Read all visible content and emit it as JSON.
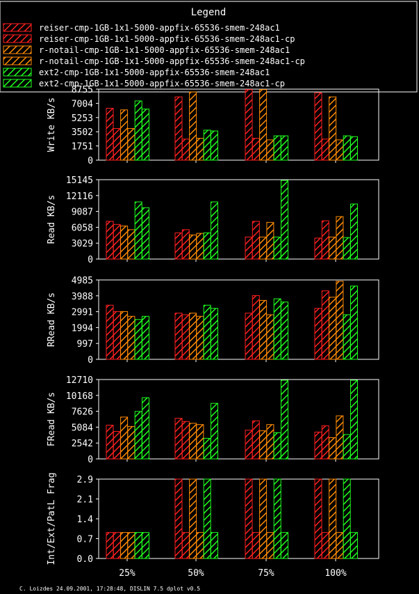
{
  "legend": {
    "title": "Legend",
    "entries": [
      {
        "label": "reiser-cmp-1GB-1x1-5000-appfix-65536-smem-248ac1",
        "color": "#ff2020",
        "pattern": "hatch"
      },
      {
        "label": "reiser-cmp-1GB-1x1-5000-appfix-65536-smem-248ac1-cp",
        "color": "#ff2020",
        "pattern": "hatch"
      },
      {
        "label": "r-notail-cmp-1GB-1x1-5000-appfix-65536-smem-248ac1",
        "color": "#ff8c00",
        "pattern": "hatch"
      },
      {
        "label": "r-notail-cmp-1GB-1x1-5000-appfix-65536-smem-248ac1-cp",
        "color": "#ff8c00",
        "pattern": "hatch"
      },
      {
        "label": "ext2-cmp-1GB-1x1-5000-appfix-65536-smem-248ac1",
        "color": "#20ff20",
        "pattern": "hatch"
      },
      {
        "label": "ext2-cmp-1GB-1x1-5000-appfix-65536-smem-248ac1-cp",
        "color": "#20ff20",
        "pattern": "hatch"
      }
    ]
  },
  "footer": "C. Loizdes 24.09.2001, 17:28:48, DISLIN 7.5 dplot v0.5",
  "chart_data": [
    {
      "type": "bar",
      "ylabel": "Write KB/s",
      "yticks": [
        "0",
        "1751",
        "3502",
        "5253",
        "7004",
        "8755"
      ],
      "ylim": [
        0,
        8755
      ],
      "categories": [
        "25%",
        "50%",
        "75%",
        "100%"
      ],
      "series": [
        {
          "values": [
            6400,
            7800,
            8700,
            8300
          ]
        },
        {
          "values": [
            3900,
            2600,
            2700,
            2600
          ]
        },
        {
          "values": [
            6200,
            8400,
            8700,
            7800
          ]
        },
        {
          "values": [
            3900,
            2700,
            2500,
            2500
          ]
        },
        {
          "values": [
            7300,
            3700,
            3000,
            3000
          ]
        },
        {
          "values": [
            6300,
            3600,
            3000,
            2900
          ]
        }
      ]
    },
    {
      "type": "bar",
      "ylabel": "Read KB/s",
      "yticks": [
        "0",
        "3029",
        "6058",
        "9087",
        "12116",
        "15145"
      ],
      "ylim": [
        0,
        15145
      ],
      "categories": [
        "25%",
        "50%",
        "75%",
        "100%"
      ],
      "series": [
        {
          "values": [
            7200,
            5000,
            4200,
            4000
          ]
        },
        {
          "values": [
            6600,
            5600,
            7200,
            7300
          ]
        },
        {
          "values": [
            6300,
            4600,
            4200,
            4200
          ]
        },
        {
          "values": [
            5600,
            4900,
            7000,
            8100
          ]
        },
        {
          "values": [
            10900,
            5000,
            4200,
            4100
          ]
        },
        {
          "values": [
            9800,
            10900,
            15000,
            10500
          ]
        }
      ]
    },
    {
      "type": "bar",
      "ylabel": "RRead KB/s",
      "yticks": [
        "0",
        "997",
        "1994",
        "2991",
        "3988",
        "4985"
      ],
      "ylim": [
        0,
        4985
      ],
      "categories": [
        "25%",
        "50%",
        "75%",
        "100%"
      ],
      "series": [
        {
          "values": [
            3400,
            2900,
            2900,
            3200
          ]
        },
        {
          "values": [
            3000,
            2800,
            4000,
            4300
          ]
        },
        {
          "values": [
            3000,
            2900,
            3700,
            3900
          ]
        },
        {
          "values": [
            2700,
            2700,
            2800,
            4900
          ]
        },
        {
          "values": [
            2500,
            3400,
            3800,
            2800
          ]
        },
        {
          "values": [
            2700,
            3200,
            3600,
            4600
          ]
        }
      ]
    },
    {
      "type": "bar",
      "ylabel": "FRead KB/s",
      "yticks": [
        "0",
        "2542",
        "5084",
        "7626",
        "10168",
        "12710"
      ],
      "ylim": [
        0,
        12710
      ],
      "categories": [
        "25%",
        "50%",
        "75%",
        "100%"
      ],
      "series": [
        {
          "values": [
            5400,
            6500,
            4600,
            4300
          ]
        },
        {
          "values": [
            4400,
            6000,
            6100,
            5300
          ]
        },
        {
          "values": [
            6700,
            5700,
            4500,
            3400
          ]
        },
        {
          "values": [
            5200,
            5500,
            5500,
            6900
          ]
        },
        {
          "values": [
            7600,
            3300,
            4200,
            3900
          ]
        },
        {
          "values": [
            9800,
            8900,
            12600,
            12600
          ]
        }
      ]
    },
    {
      "type": "bar",
      "ylabel": "Int/Ext/PatL Frag",
      "yticks": [
        "0.0",
        "0.7",
        "1.4",
        "2.1",
        "2.9"
      ],
      "ylim": [
        0,
        2.9
      ],
      "categories": [
        "25%",
        "50%",
        "75%",
        "100%"
      ],
      "series": [
        {
          "values": [
            0.95,
            2.9,
            2.9,
            2.9
          ]
        },
        {
          "values": [
            0.95,
            0.95,
            0.95,
            0.95
          ]
        },
        {
          "values": [
            0.95,
            2.9,
            2.9,
            2.9
          ]
        },
        {
          "values": [
            0.95,
            0.95,
            0.95,
            0.95
          ]
        },
        {
          "values": [
            0.95,
            2.9,
            2.9,
            2.9
          ]
        },
        {
          "values": [
            0.95,
            0.95,
            0.95,
            0.95
          ]
        }
      ]
    }
  ]
}
